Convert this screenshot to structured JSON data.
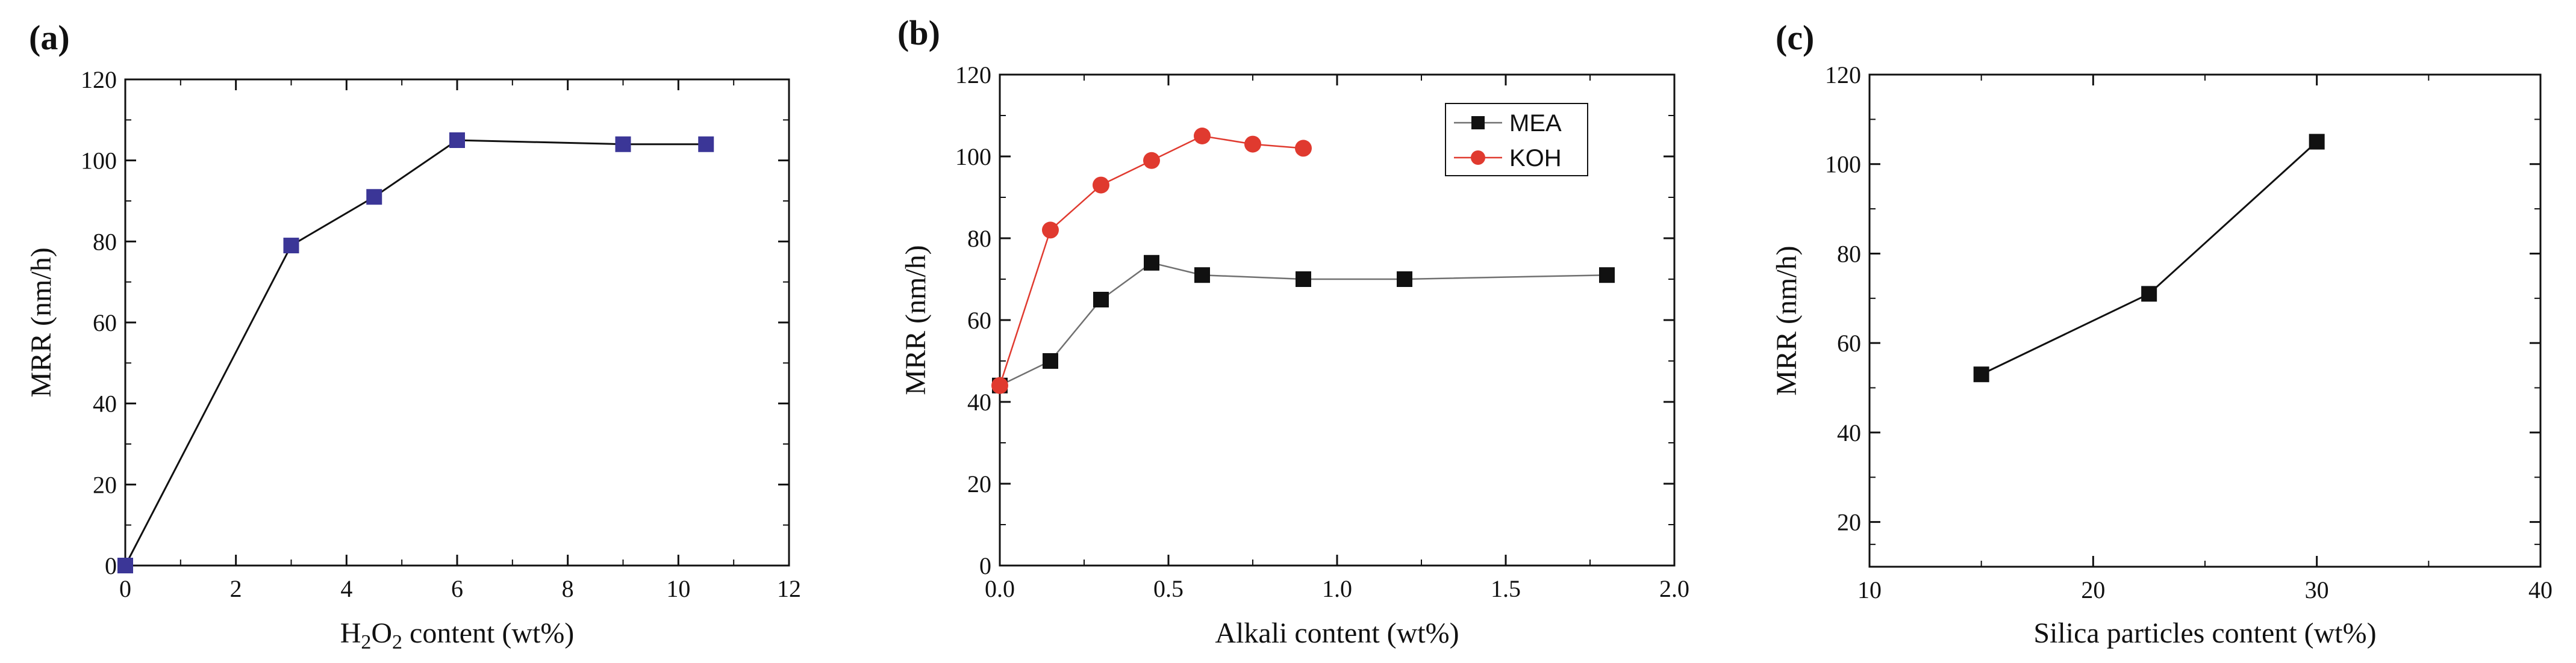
{
  "colors": {
    "blue_marker": "#3b3697",
    "black": "#111111",
    "red": "#e03a2f",
    "gray_line": "#707070"
  },
  "panel_labels": {
    "a": "(a)",
    "b": "(b)",
    "c": "(c)"
  },
  "chart_data": [
    {
      "id": "a",
      "type": "line",
      "title": "",
      "xlabel_parts": [
        "H",
        "2",
        "O",
        "2",
        " content (wt%)"
      ],
      "ylabel": "MRR (nm/h)",
      "xlim": [
        0,
        12
      ],
      "ylim": [
        0,
        120
      ],
      "xticks": [
        0,
        2,
        4,
        6,
        8,
        10,
        12
      ],
      "xtick_labels": [
        "0",
        "2",
        "4",
        "6",
        "8",
        "10",
        "12"
      ],
      "yticks": [
        0,
        20,
        40,
        60,
        80,
        100,
        120
      ],
      "ytick_labels": [
        "0",
        "20",
        "40",
        "60",
        "80",
        "100",
        "120"
      ],
      "series": [
        {
          "name": "MRR",
          "marker": "square",
          "color": "#3b3697",
          "line_color": "#111111",
          "x": [
            0,
            3,
            4.5,
            6,
            9,
            10.5
          ],
          "y": [
            0,
            79,
            91,
            105,
            104,
            104
          ]
        }
      ]
    },
    {
      "id": "b",
      "type": "line",
      "title": "",
      "xlabel": "Alkali content (wt%)",
      "ylabel": "MRR (nm/h)",
      "xlim": [
        0,
        2
      ],
      "ylim": [
        0,
        120
      ],
      "xticks": [
        0,
        0.5,
        1,
        1.5,
        2
      ],
      "xtick_labels": [
        "0.0",
        "0.5",
        "1.0",
        "1.5",
        "2.0"
      ],
      "yticks": [
        0,
        20,
        40,
        60,
        80,
        100,
        120
      ],
      "ytick_labels": [
        "0",
        "20",
        "40",
        "60",
        "80",
        "100",
        "120"
      ],
      "legend_position": "top-right",
      "series": [
        {
          "name": "MEA",
          "marker": "square",
          "color": "#111111",
          "line_color": "#707070",
          "x": [
            0,
            0.15,
            0.3,
            0.45,
            0.6,
            0.9,
            1.2,
            1.8
          ],
          "y": [
            44,
            50,
            65,
            74,
            71,
            70,
            70,
            71
          ]
        },
        {
          "name": "KOH",
          "marker": "circle",
          "color": "#e03a2f",
          "line_color": "#e03a2f",
          "x": [
            0,
            0.15,
            0.3,
            0.45,
            0.6,
            0.75,
            0.9
          ],
          "y": [
            44,
            82,
            93,
            99,
            105,
            103,
            102
          ]
        }
      ]
    },
    {
      "id": "c",
      "type": "line",
      "title": "",
      "xlabel": "Silica particles content (wt%)",
      "ylabel": "MRR (nm/h)",
      "xlim": [
        10,
        40
      ],
      "ylim": [
        10,
        120
      ],
      "xticks": [
        10,
        20,
        30,
        40
      ],
      "xtick_labels": [
        "10",
        "20",
        "30",
        "40"
      ],
      "yticks": [
        20,
        40,
        60,
        80,
        100,
        120
      ],
      "ytick_labels": [
        "20",
        "40",
        "60",
        "80",
        "100",
        "120"
      ],
      "series": [
        {
          "name": "MRR",
          "marker": "square",
          "color": "#111111",
          "line_color": "#111111",
          "x": [
            15,
            22.5,
            30
          ],
          "y": [
            53,
            71,
            105
          ]
        }
      ]
    }
  ]
}
